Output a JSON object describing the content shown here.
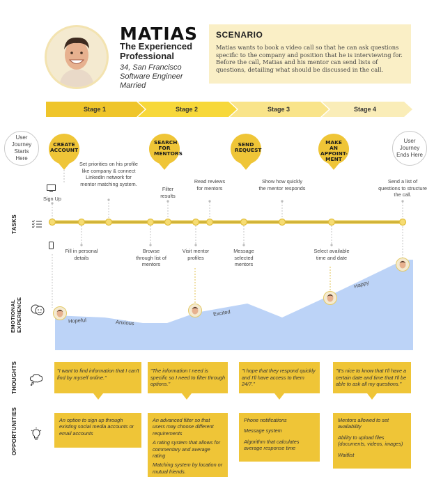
{
  "persona": {
    "name": "MATIAS",
    "subtitle": "The Experienced Professional",
    "meta_line1": "34, San Francisco",
    "meta_line2": "Software Engineer",
    "meta_line3": "Married"
  },
  "scenario": {
    "title": "SCENARIO",
    "text": "Matias wants to book a video call so that he can ask questions specific to the company and position that he is interviewing for. Before the call, Matias and his mentor can send lists of questions, detailing what should be discussed in the call."
  },
  "stages": [
    "Stage 1",
    "Stage 2",
    "Stage 3",
    "Stage 4"
  ],
  "journey": {
    "start": "User Journey Starts Here",
    "end": "User Journey Ends Here",
    "steps": [
      "CREATE ACCOUNT",
      "SEARCH FOR MENTORS",
      "SEND REQUEST",
      "MAKE AN APPOINT-MENT"
    ]
  },
  "tasks": {
    "above": [
      "Sign Up",
      "Set priorities on his profile like company & connect LinkedIn network for mentor matching system.",
      "Filter results",
      "Read reviews for mentors",
      "Show how quickly the mentor responds",
      "Send a list of questions to structure the call."
    ],
    "below": [
      "Fill in personal details",
      "Browse through list of mentors",
      "Visit mentor profiles",
      "Message selected mentors",
      "Select available time and date"
    ]
  },
  "sections": {
    "tasks": "TASKS",
    "emotional": "EMOTIONAL EXPERIENCE",
    "thoughts": "THOUGHTS",
    "opportunities": "OPPORTUNITIES"
  },
  "emotions": [
    "Hopeful",
    "Anxious",
    "Excited",
    "Happy"
  ],
  "thoughts": [
    "\"I want to find information that I can't find by myself online.\"",
    "\"The information I need is specific so I need to filter through options.\"",
    "\"I hope that they respond quickly and I'll have access to them 24/7.\"",
    "\"It's nice to know that I'll have a certain date and time that I'll be able to ask all my questions.\""
  ],
  "opportunities": [
    [
      "An option to sign up through existing social media accounts or email accounts"
    ],
    [
      "An advanced filter so that users may choose different requirements",
      "A rating system that allows for commentary and average rating",
      "Matching system by location or mutual friends."
    ],
    [
      "Phone notifications",
      "Message system",
      "Algorithm that calculates average response time"
    ],
    [
      "Mentors allowed to set availability",
      "Ability to upload files (documents, videos, images)",
      "Waitlist"
    ]
  ],
  "colors": {
    "yellow": "#efc537",
    "stage1": "#efc52a",
    "stage2": "#f7d83a",
    "stage3": "#f9e48a",
    "stage4": "#faedb8",
    "emotion_area": "#bcd3f7"
  }
}
